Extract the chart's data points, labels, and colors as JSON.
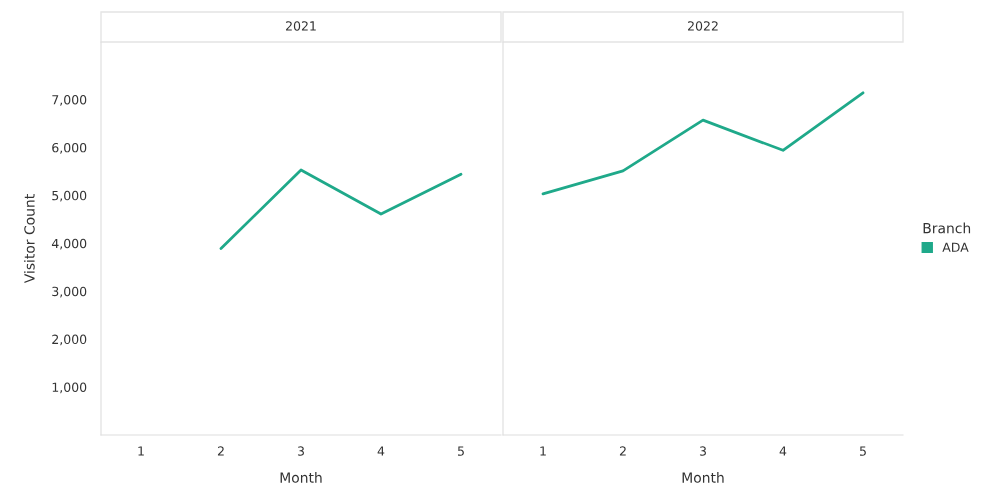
{
  "chart_data": [
    {
      "type": "line",
      "title": "2021",
      "xlabel": "Month",
      "ylabel": "Visitor Count",
      "xlim": [
        0.5,
        5.5
      ],
      "xticks": [
        1,
        2,
        3,
        4,
        5
      ],
      "ylim": [
        0,
        8200
      ],
      "yticks": [
        {
          "value": 1000,
          "label": "1,000"
        },
        {
          "value": 2000,
          "label": "2,000"
        },
        {
          "value": 3000,
          "label": "3,000"
        },
        {
          "value": 4000,
          "label": "4,000"
        },
        {
          "value": 5000,
          "label": "5,000"
        },
        {
          "value": 6000,
          "label": "6,000"
        },
        {
          "value": 7000,
          "label": "7,000"
        }
      ],
      "series": [
        {
          "color": "#1fa98a",
          "x": [
            2,
            3,
            4,
            5
          ],
          "values": [
            3890,
            5530,
            4610,
            5440
          ]
        }
      ]
    },
    {
      "type": "line",
      "title": "2022",
      "xlabel": "Month",
      "x": [
        1,
        2,
        3,
        4,
        5
      ],
      "xlim": [
        0.5,
        5.5
      ],
      "xticks": [
        1,
        2,
        3,
        4,
        5
      ],
      "ylim": [
        0,
        8200
      ],
      "tick_labels": "x",
      "legend": "right",
      "legend_title": "Branch",
      "series": [
        {
          "name": "ADA",
          "color": "#1fa98a",
          "values": [
            5030,
            5510,
            6570,
            5940,
            7140
          ]
        }
      ]
    }
  ]
}
